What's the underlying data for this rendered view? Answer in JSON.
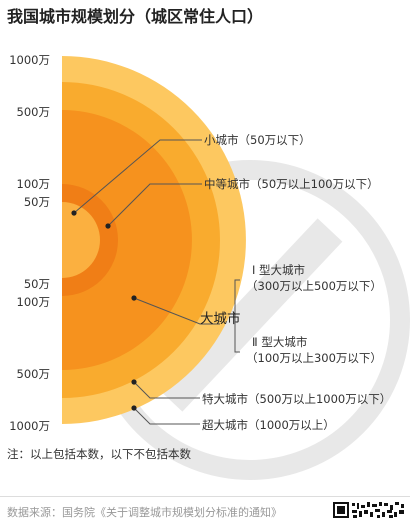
{
  "title": "我国城市规模划分（城区常住人口）",
  "ticks": {
    "top_1000": "1000万",
    "top_500": "500万",
    "top_100": "100万",
    "top_50": "50万",
    "bottom_50": "50万",
    "bottom_100": "100万",
    "bottom_500": "500万",
    "bottom_1000": "1000万"
  },
  "categories": {
    "small": "小城市（50万以下）",
    "medium": "中等城市（50万以上100万以下）",
    "large": "大城市",
    "large_type1_name": "Ⅰ 型大城市",
    "large_type1_range": "（300万以上500万以下）",
    "large_type2_name": "Ⅱ 型大城市",
    "large_type2_range": "（100万以上300万以下）",
    "very_large": "特大城市（500万以上1000万以下）",
    "mega": "超大城市（1000万以上）"
  },
  "note": "注：以上包括本数，以下不包括本数",
  "source": "数据来源：国务院《关于调整城市规模划分标准的通知》",
  "colors": {
    "mega": "#FDC860",
    "very_large": "#F9AB2E",
    "large": "#F6921E",
    "medium": "#F07E16",
    "small": "#FBB040",
    "watermark": "#E8E8E8"
  }
}
